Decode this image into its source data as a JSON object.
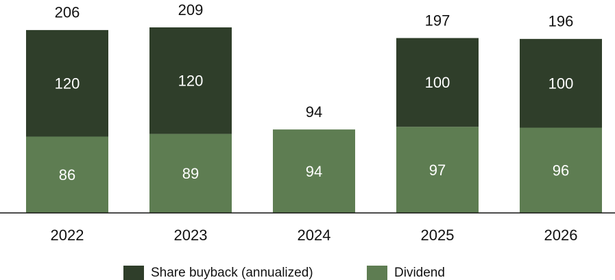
{
  "chart_data": {
    "type": "stacked_bar",
    "categories": [
      "2022",
      "2023",
      "2024",
      "2025",
      "2026"
    ],
    "series": [
      {
        "name": "Dividend",
        "color": "#5e7d52",
        "values": [
          86,
          89,
          94,
          97,
          96
        ]
      },
      {
        "name": "Share buyback (annualized)",
        "color": "#2f3e2a",
        "values": [
          120,
          120,
          null,
          100,
          100
        ]
      }
    ],
    "totals": [
      206,
      209,
      94,
      197,
      196
    ],
    "legend": "bottom"
  }
}
